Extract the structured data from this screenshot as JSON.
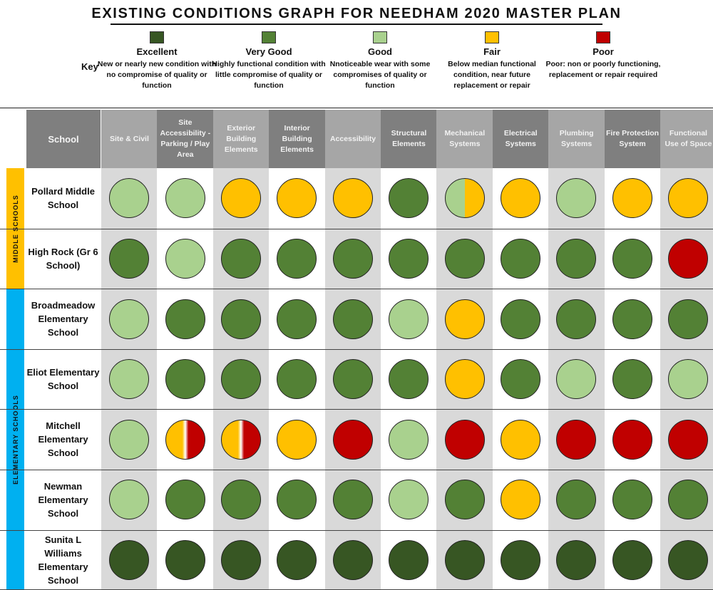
{
  "title": "EXISTING CONDITIONS GRAPH FOR NEEDHAM 2020 MASTER PLAN",
  "key": {
    "label": "Key",
    "items": [
      {
        "id": "excellent",
        "name": "Excellent",
        "desc": "New or nearly new condition with no compromise of quality or function",
        "color": "#375623"
      },
      {
        "id": "verygood",
        "name": "Very Good",
        "desc": "Highly functional condition with little compromise of quality or function",
        "color": "#538135"
      },
      {
        "id": "good",
        "name": "Good",
        "desc": "Nnoticeable wear with some compromises of quality or function",
        "color": "#a9d18e"
      },
      {
        "id": "fair",
        "name": "Fair",
        "desc": "Below median functional condition, near future replacement or repair",
        "color": "#ffc000"
      },
      {
        "id": "poor",
        "name": "Poor",
        "desc": "Poor: non or poorly functioning, replacement or repair required",
        "color": "#c00000"
      }
    ]
  },
  "chart_data": {
    "type": "table",
    "title": "EXISTING CONDITIONS GRAPH FOR NEEDHAM 2020 MASTER PLAN",
    "row_header": "School",
    "columns": [
      "Site & Civil",
      "Site Accessibility -Parking / Play Area",
      "Exterior Building Elements",
      "Interior Building Elements",
      "Accessibility",
      "Structural Elements",
      "Mechanical Systems",
      "Electrical Systems",
      "Plumbing Systems",
      "Fire Protection System",
      "Functional Use of Space"
    ],
    "groups": [
      {
        "name": "MIDDLE SCHOOLS",
        "color": "#ffc000",
        "rows": [
          0,
          1
        ]
      },
      {
        "name": "ELEMENTARY SCHOOLS",
        "color": "#00b0f0",
        "rows": [
          2,
          3,
          4,
          5,
          6
        ]
      }
    ],
    "rows": [
      {
        "school": "Pollard Middle School",
        "ratings": [
          "good",
          "good",
          "fair",
          "fair",
          "fair",
          "verygood",
          "good|fair",
          "fair",
          "good",
          "fair",
          "fair"
        ]
      },
      {
        "school": "High Rock (Gr 6 School)",
        "ratings": [
          "verygood",
          "good",
          "verygood",
          "verygood",
          "verygood",
          "verygood",
          "verygood",
          "verygood",
          "verygood",
          "verygood",
          "poor"
        ]
      },
      {
        "school": "Broadmeadow Elementary School",
        "ratings": [
          "good",
          "verygood",
          "verygood",
          "verygood",
          "verygood",
          "good",
          "fair",
          "verygood",
          "verygood",
          "verygood",
          "verygood"
        ]
      },
      {
        "school": "Eliot Elementary School",
        "ratings": [
          "good",
          "verygood",
          "verygood",
          "verygood",
          "verygood",
          "verygood",
          "fair",
          "verygood",
          "good",
          "verygood",
          "good"
        ]
      },
      {
        "school": "Mitchell Elementary School",
        "ratings": [
          "good",
          "fair|poor",
          "fair|poor",
          "fair",
          "poor",
          "good",
          "poor",
          "fair",
          "poor",
          "poor",
          "poor"
        ]
      },
      {
        "school": "Newman Elementary School",
        "ratings": [
          "good",
          "verygood",
          "verygood",
          "verygood",
          "verygood",
          "good",
          "verygood",
          "fair",
          "verygood",
          "verygood",
          "verygood"
        ]
      },
      {
        "school": "Sunita L Williams Elementary School",
        "ratings": [
          "excellent",
          "excellent",
          "excellent",
          "excellent",
          "excellent",
          "excellent",
          "excellent",
          "excellent",
          "excellent",
          "excellent",
          "excellent"
        ]
      }
    ]
  }
}
